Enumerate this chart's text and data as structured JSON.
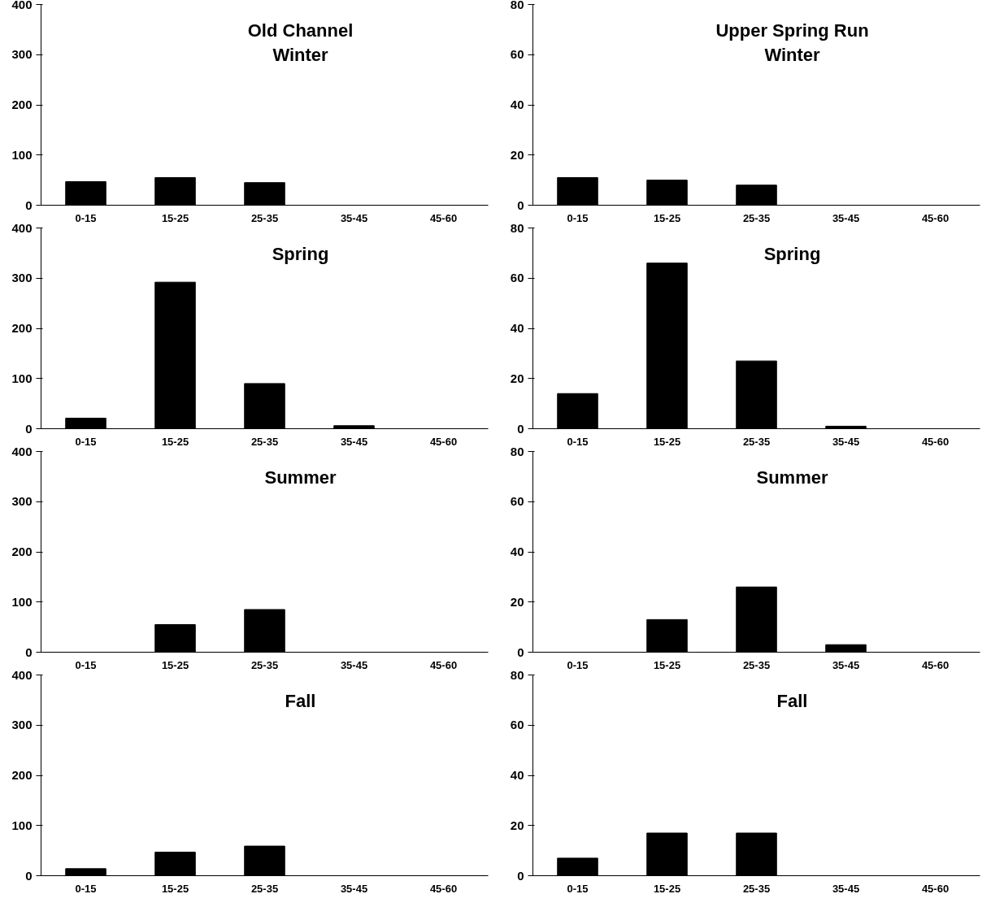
{
  "chart_data": [
    {
      "type": "bar",
      "title": "Old Channel\nWinter",
      "categories": [
        "0-15",
        "15-25",
        "25-35",
        "35-45",
        "45-60"
      ],
      "values": [
        47,
        55,
        45,
        0,
        0
      ],
      "color": "#000000",
      "ylim": [
        0,
        400
      ],
      "yticks": [
        0,
        100,
        200,
        300,
        400
      ]
    },
    {
      "type": "bar",
      "title": "Upper Spring Run\nWinter",
      "categories": [
        "0-15",
        "15-25",
        "25-35",
        "35-45",
        "45-60"
      ],
      "values": [
        11,
        10,
        8,
        0,
        0
      ],
      "color": "#000000",
      "ylim": [
        0,
        80
      ],
      "yticks": [
        0,
        20,
        40,
        60,
        80
      ]
    },
    {
      "type": "bar",
      "title": "Spring",
      "categories": [
        "0-15",
        "15-25",
        "25-35",
        "35-45",
        "45-60"
      ],
      "values": [
        21,
        292,
        90,
        6,
        0
      ],
      "color": "#000000",
      "ylim": [
        0,
        400
      ],
      "yticks": [
        0,
        100,
        200,
        300,
        400
      ]
    },
    {
      "type": "bar",
      "title": "Spring",
      "categories": [
        "0-15",
        "15-25",
        "25-35",
        "35-45",
        "45-60"
      ],
      "values": [
        14,
        66,
        27,
        1,
        0
      ],
      "color": "#000000",
      "ylim": [
        0,
        80
      ],
      "yticks": [
        0,
        20,
        40,
        60,
        80
      ]
    },
    {
      "type": "bar",
      "title": "Summer",
      "categories": [
        "0-15",
        "15-25",
        "25-35",
        "35-45",
        "45-60"
      ],
      "values": [
        0,
        55,
        85,
        0,
        0
      ],
      "color": "#000000",
      "ylim": [
        0,
        400
      ],
      "yticks": [
        0,
        100,
        200,
        300,
        400
      ]
    },
    {
      "type": "bar",
      "title": "Summer",
      "categories": [
        "0-15",
        "15-25",
        "25-35",
        "35-45",
        "45-60"
      ],
      "values": [
        0,
        13,
        26,
        3,
        0
      ],
      "color": "#000000",
      "ylim": [
        0,
        80
      ],
      "yticks": [
        0,
        20,
        40,
        60,
        80
      ]
    },
    {
      "type": "bar",
      "title": "Fall",
      "categories": [
        "0-15",
        "15-25",
        "25-35",
        "35-45",
        "45-60"
      ],
      "values": [
        14,
        47,
        59,
        0,
        0
      ],
      "color": "#000000",
      "ylim": [
        0,
        400
      ],
      "yticks": [
        0,
        100,
        200,
        300,
        400
      ]
    },
    {
      "type": "bar",
      "title": "Fall",
      "categories": [
        "0-15",
        "15-25",
        "25-35",
        "35-45",
        "45-60"
      ],
      "values": [
        7,
        17,
        17,
        0,
        0
      ],
      "color": "#000000",
      "ylim": [
        0,
        80
      ],
      "yticks": [
        0,
        20,
        40,
        60,
        80
      ]
    }
  ]
}
